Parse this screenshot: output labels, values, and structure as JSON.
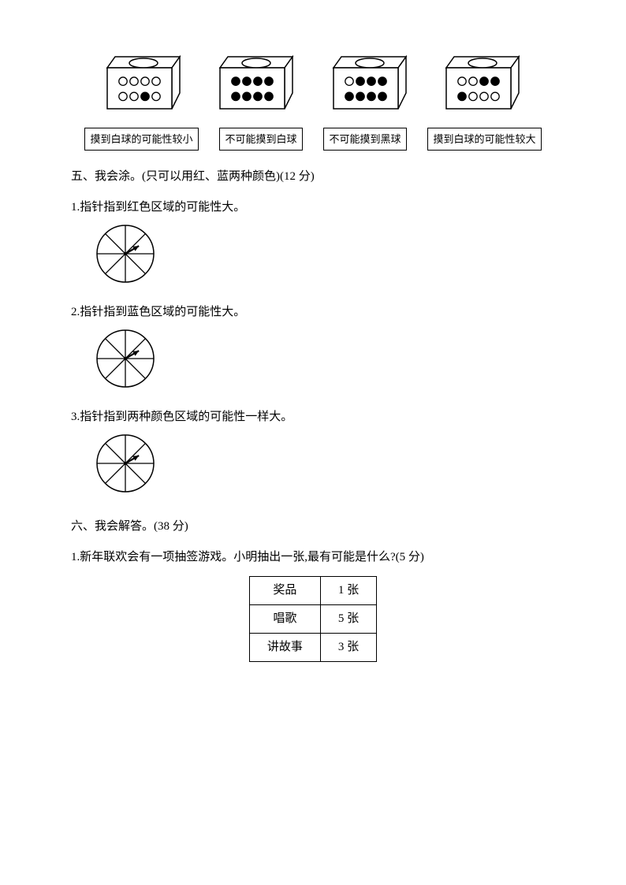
{
  "boxes": [
    {
      "top": [
        "w",
        "w",
        "w",
        "w"
      ],
      "bottom": [
        "w",
        "w",
        "b",
        "w"
      ]
    },
    {
      "top": [
        "b",
        "b",
        "b",
        "b"
      ],
      "bottom": [
        "b",
        "b",
        "b",
        "b"
      ]
    },
    {
      "top": [
        "w",
        "b",
        "b",
        "b"
      ],
      "bottom": [
        "b",
        "b",
        "b",
        "b"
      ]
    },
    {
      "top": [
        "w",
        "w",
        "b",
        "b"
      ],
      "bottom": [
        "b",
        "w",
        "w",
        "w"
      ]
    }
  ],
  "box_style": {
    "width": 100,
    "height": 70,
    "stroke": "#000000",
    "fill": "#ffffff",
    "circle_r": 5.2,
    "circle_spacing": 14
  },
  "labels": [
    "摸到白球的可能性较小",
    "不可能摸到白球",
    "不可能摸到黑球",
    "摸到白球的可能性较大"
  ],
  "section5": {
    "title": "五、我会涂。(只可以用红、蓝两种颜色)(12 分)",
    "q1": "1.指针指到红色区域的可能性大。",
    "q2": "2.指针指到蓝色区域的可能性大。",
    "q3": "3.指针指到两种颜色区域的可能性一样大。"
  },
  "spinner_style": {
    "radius": 36,
    "segments": 8,
    "stroke": "#000000",
    "pointer_angle_deg": 30
  },
  "section6": {
    "title": "六、我会解答。(38 分)",
    "q1": "1.新年联欢会有一项抽签游戏。小明抽出一张,最有可能是什么?(5 分)"
  },
  "table": {
    "rows": [
      [
        "奖品",
        "1 张"
      ],
      [
        "唱歌",
        "5 张"
      ],
      [
        "讲故事",
        "3 张"
      ]
    ]
  }
}
